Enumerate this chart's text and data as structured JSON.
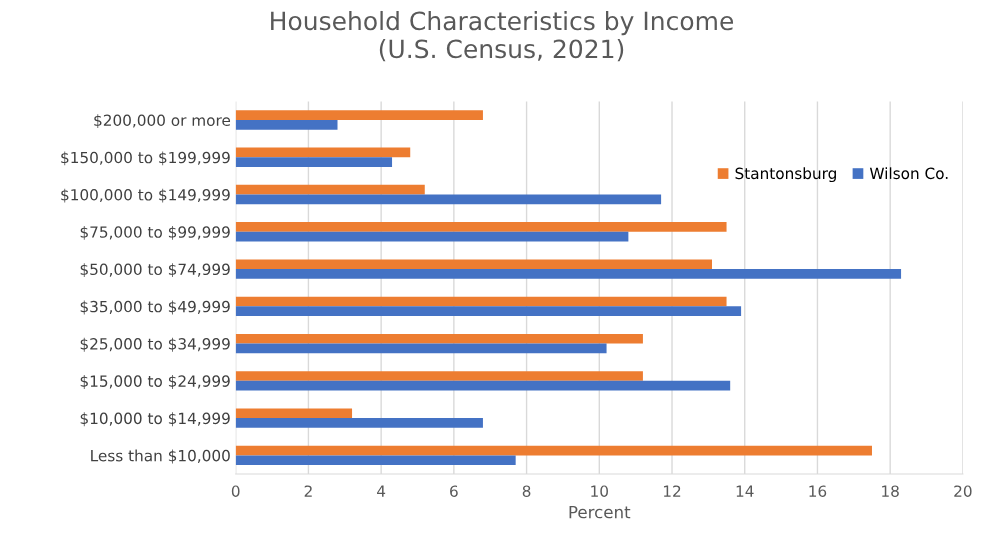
{
  "chart_data": {
    "type": "bar",
    "orientation": "horizontal",
    "title": "Household Characteristics by Income\n(U.S. Census, 2021)",
    "xlabel": "Percent",
    "categories": [
      "$200,000 or more",
      "$150,000 to $199,999",
      "$100,000 to $149,999",
      "$75,000 to $99,999",
      "$50,000 to $74,999",
      "$35,000 to $49,999",
      "$25,000 to $34,999",
      "$15,000 to $24,999",
      "$10,000 to $14,999",
      "Less than $10,000"
    ],
    "series": [
      {
        "name": "Stantonsburg",
        "color": "#ed7d31",
        "values": [
          6.8,
          4.8,
          5.2,
          13.5,
          13.1,
          13.5,
          11.2,
          11.2,
          3.2,
          17.5
        ]
      },
      {
        "name": "Wilson Co.",
        "color": "#4472c4",
        "values": [
          2.8,
          4.3,
          11.7,
          10.8,
          18.3,
          13.9,
          10.2,
          13.6,
          6.8,
          7.7
        ]
      }
    ],
    "xlim": [
      0,
      20
    ],
    "xticks": [
      0,
      2,
      4,
      6,
      8,
      10,
      12,
      14,
      16,
      18,
      20
    ],
    "grid": "x",
    "legend": "top right"
  }
}
